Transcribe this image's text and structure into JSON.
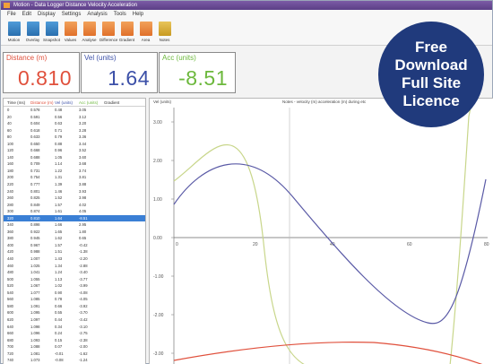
{
  "window": {
    "title": "Motion - Data Logger Distance Velocity Acceleration",
    "menu": [
      "File",
      "Edit",
      "Display",
      "Settings",
      "Analysis",
      "Tools",
      "Help"
    ]
  },
  "toolbar": [
    {
      "label": "Motion",
      "icon": "motion-icon",
      "color": "blue"
    },
    {
      "label": "Overlay",
      "icon": "overlay-icon",
      "color": "blue"
    },
    {
      "label": "Snapshot",
      "icon": "snapshot-icon",
      "color": "blue"
    },
    {
      "label": "Values",
      "icon": "values-icon",
      "color": "orange"
    },
    {
      "label": "Analyse",
      "icon": "analyse-icon",
      "color": "orange"
    },
    {
      "label": "Difference",
      "icon": "difference-icon",
      "color": "orange"
    },
    {
      "label": "Gradient",
      "icon": "gradient-icon",
      "color": "orange"
    },
    {
      "label": "Area",
      "icon": "area-icon",
      "color": "orange"
    },
    {
      "label": "Notes",
      "icon": "notes-icon",
      "color": "yellow"
    }
  ],
  "readouts": {
    "distance": {
      "label": "Distance (m)",
      "value": "0.810",
      "color": "#e0503c"
    },
    "velocity": {
      "label": "Vel (units)",
      "value": "1.64",
      "color": "#3c50a8"
    },
    "acceleration": {
      "label": "Acc (units)",
      "value": "-8.51",
      "color": "#6cb83c"
    }
  },
  "table": {
    "headers": [
      "Time (ms)",
      "Distance (m)",
      "Vel (units)",
      "Acc (units)",
      "Gradient"
    ],
    "header_colors": [
      "#333333",
      "#e0503c",
      "#3c50a8",
      "#6cb83c",
      "#333333"
    ],
    "selected_row": 16,
    "rows": [
      [
        "0",
        "0.578",
        "0.48",
        "3.05"
      ],
      [
        "20",
        "0.591",
        "0.56",
        "3.12"
      ],
      [
        "40",
        "0.604",
        "0.63",
        "3.20"
      ],
      [
        "60",
        "0.618",
        "0.71",
        "3.28"
      ],
      [
        "80",
        "0.633",
        "0.79",
        "3.36"
      ],
      [
        "100",
        "0.650",
        "0.88",
        "3.44"
      ],
      [
        "120",
        "0.668",
        "0.96",
        "3.52"
      ],
      [
        "140",
        "0.688",
        "1.05",
        "3.60"
      ],
      [
        "160",
        "0.709",
        "1.14",
        "3.68"
      ],
      [
        "180",
        "0.731",
        "1.22",
        "3.74"
      ],
      [
        "200",
        "0.754",
        "1.31",
        "3.81"
      ],
      [
        "220",
        "0.777",
        "1.39",
        "3.88"
      ],
      [
        "240",
        "0.801",
        "1.46",
        "3.93"
      ],
      [
        "260",
        "0.825",
        "1.52",
        "3.98"
      ],
      [
        "280",
        "0.849",
        "1.57",
        "4.02"
      ],
      [
        "300",
        "0.874",
        "1.61",
        "4.05"
      ],
      [
        "320",
        "0.810",
        "1.64",
        "-8.51"
      ],
      [
        "340",
        "0.898",
        "1.66",
        "2.95"
      ],
      [
        "360",
        "0.922",
        "1.65",
        "1.80"
      ],
      [
        "380",
        "0.945",
        "1.62",
        "0.65"
      ],
      [
        "400",
        "0.967",
        "1.57",
        "-0.42"
      ],
      [
        "420",
        "0.988",
        "1.51",
        "-1.38"
      ],
      [
        "440",
        "1.007",
        "1.43",
        "-2.20"
      ],
      [
        "460",
        "1.025",
        "1.34",
        "-2.88"
      ],
      [
        "480",
        "1.041",
        "1.24",
        "-3.40"
      ],
      [
        "500",
        "1.055",
        "1.13",
        "-3.77"
      ],
      [
        "520",
        "1.067",
        "1.02",
        "-3.99"
      ],
      [
        "540",
        "1.077",
        "0.90",
        "-4.08"
      ],
      [
        "560",
        "1.085",
        "0.78",
        "-4.05"
      ],
      [
        "580",
        "1.091",
        "0.66",
        "-3.92"
      ],
      [
        "600",
        "1.095",
        "0.55",
        "-3.70"
      ],
      [
        "620",
        "1.097",
        "0.44",
        "-3.42"
      ],
      [
        "640",
        "1.098",
        "0.34",
        "-3.10"
      ],
      [
        "660",
        "1.096",
        "0.24",
        "-2.75"
      ],
      [
        "680",
        "1.093",
        "0.15",
        "-2.38"
      ],
      [
        "700",
        "1.088",
        "0.07",
        "-2.00"
      ],
      [
        "720",
        "1.081",
        "-0.01",
        "-1.62"
      ],
      [
        "740",
        "1.073",
        "-0.08",
        "-1.24"
      ],
      [
        "760",
        "1.063",
        "-0.14",
        "-0.88"
      ]
    ]
  },
  "graph": {
    "unit_label": "Vel (units)",
    "note": "Notes - velocity (m) acceleration (m) during etc",
    "y_ticks": [
      "3.00",
      "2.00",
      "1.00",
      "0.00",
      "-1.00",
      "-2.00",
      "-3.00"
    ],
    "x_ticks": [
      "0",
      "20",
      "40",
      "60",
      "80"
    ],
    "colors": {
      "distance": "#e0503c",
      "velocity": "#5a5aa6",
      "acceleration": "#c8d68a"
    }
  },
  "badge": {
    "lines": [
      "Free",
      "Download",
      "Full Site",
      "Licence"
    ],
    "color": "#203a7c"
  }
}
